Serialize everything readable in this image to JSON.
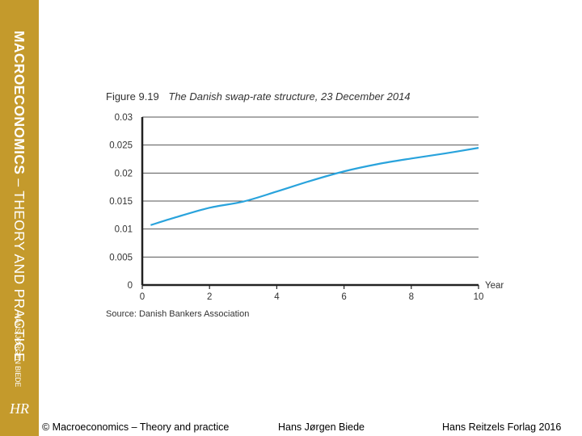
{
  "sidebar": {
    "title_bold": "MACROECONOMICS",
    "title_rest": " – THEORY AND PRACTICE",
    "author": "HANS JØRGEN BIEDE",
    "logo": "HR"
  },
  "figure": {
    "number": "Figure 9.19",
    "caption": "The Danish swap-rate structure, 23 December 2014",
    "source": "Source: Danish Bankers Association"
  },
  "footer": {
    "copyright": "© Macroeconomics – Theory and practice",
    "author": "Hans Jørgen Biede",
    "publisher": "Hans Reitzels Forlag 2016"
  },
  "chart_data": {
    "type": "line",
    "title": "The Danish swap-rate structure, 23 December 2014",
    "xlabel": "Year",
    "ylabel": "",
    "xlim": [
      0,
      10
    ],
    "ylim": [
      0,
      0.03
    ],
    "xticks": [
      "0",
      "2",
      "4",
      "6",
      "8",
      "10"
    ],
    "yticks": [
      "0",
      "0.005",
      "0.01",
      "0.015",
      "0.02",
      "0.025",
      "0.03"
    ],
    "grid": "horizontal",
    "line_color": "#29a3dc",
    "series": [
      {
        "x": [
          0.25,
          1,
          2,
          3,
          4,
          5,
          6,
          7,
          8,
          9,
          10
        ],
        "y": [
          0.0107,
          0.0121,
          0.0138,
          0.0149,
          0.0167,
          0.0186,
          0.0203,
          0.0216,
          0.0226,
          0.0235,
          0.0245
        ]
      }
    ]
  }
}
